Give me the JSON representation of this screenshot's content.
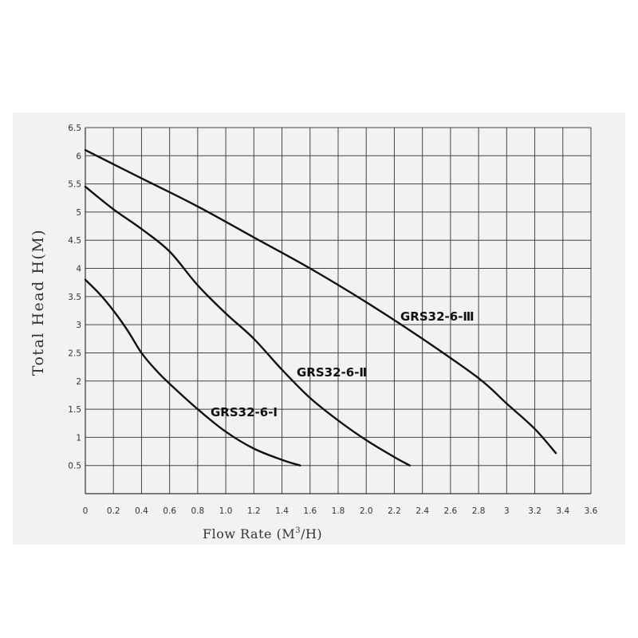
{
  "chart_data": {
    "type": "line",
    "xlabel": "Flow Rate (M³/H)",
    "xlabel_main": "Flow Rate (M",
    "xlabel_sup": "3",
    "xlabel_end": "/H)",
    "ylabel": "Total Head H(M)",
    "xlim": [
      0,
      3.6
    ],
    "ylim": [
      0,
      6.5
    ],
    "x_ticks": [
      "0",
      "0.2",
      "0.4",
      "0.6",
      "0.8",
      "1.0",
      "1.2",
      "1.4",
      "1.6",
      "1.8",
      "2.0",
      "2.2",
      "2.4",
      "2.6",
      "2.8",
      "3",
      "3.2",
      "3.4",
      "3.6"
    ],
    "y_ticks": [
      "0.5",
      "1",
      "1.5",
      "2",
      "2.5",
      "3",
      "3.5",
      "4",
      "4.5",
      "5",
      "5.5",
      "6",
      "6.5"
    ],
    "grid": true,
    "series": [
      {
        "name": "GRS32-6-Ⅰ",
        "x": [
          0,
          0.1,
          0.2,
          0.3,
          0.4,
          0.5,
          0.6,
          0.8,
          1.0,
          1.2,
          1.4,
          1.53
        ],
        "y": [
          3.8,
          3.55,
          3.25,
          2.9,
          2.5,
          2.2,
          1.95,
          1.5,
          1.1,
          0.8,
          0.6,
          0.5
        ]
      },
      {
        "name": "GRS32-6-Ⅱ",
        "x": [
          0,
          0.2,
          0.4,
          0.6,
          0.8,
          1.0,
          1.2,
          1.4,
          1.6,
          1.8,
          2.0,
          2.2,
          2.31
        ],
        "y": [
          5.45,
          5.05,
          4.7,
          4.3,
          3.7,
          3.2,
          2.75,
          2.2,
          1.7,
          1.3,
          0.95,
          0.65,
          0.5
        ]
      },
      {
        "name": "GRS32-6-Ⅲ",
        "x": [
          0,
          0.4,
          0.8,
          1.2,
          1.6,
          2.0,
          2.4,
          2.8,
          3.0,
          3.2,
          3.35
        ],
        "y": [
          6.1,
          5.6,
          5.1,
          4.55,
          4.0,
          3.4,
          2.75,
          2.05,
          1.6,
          1.15,
          0.72
        ]
      }
    ]
  }
}
